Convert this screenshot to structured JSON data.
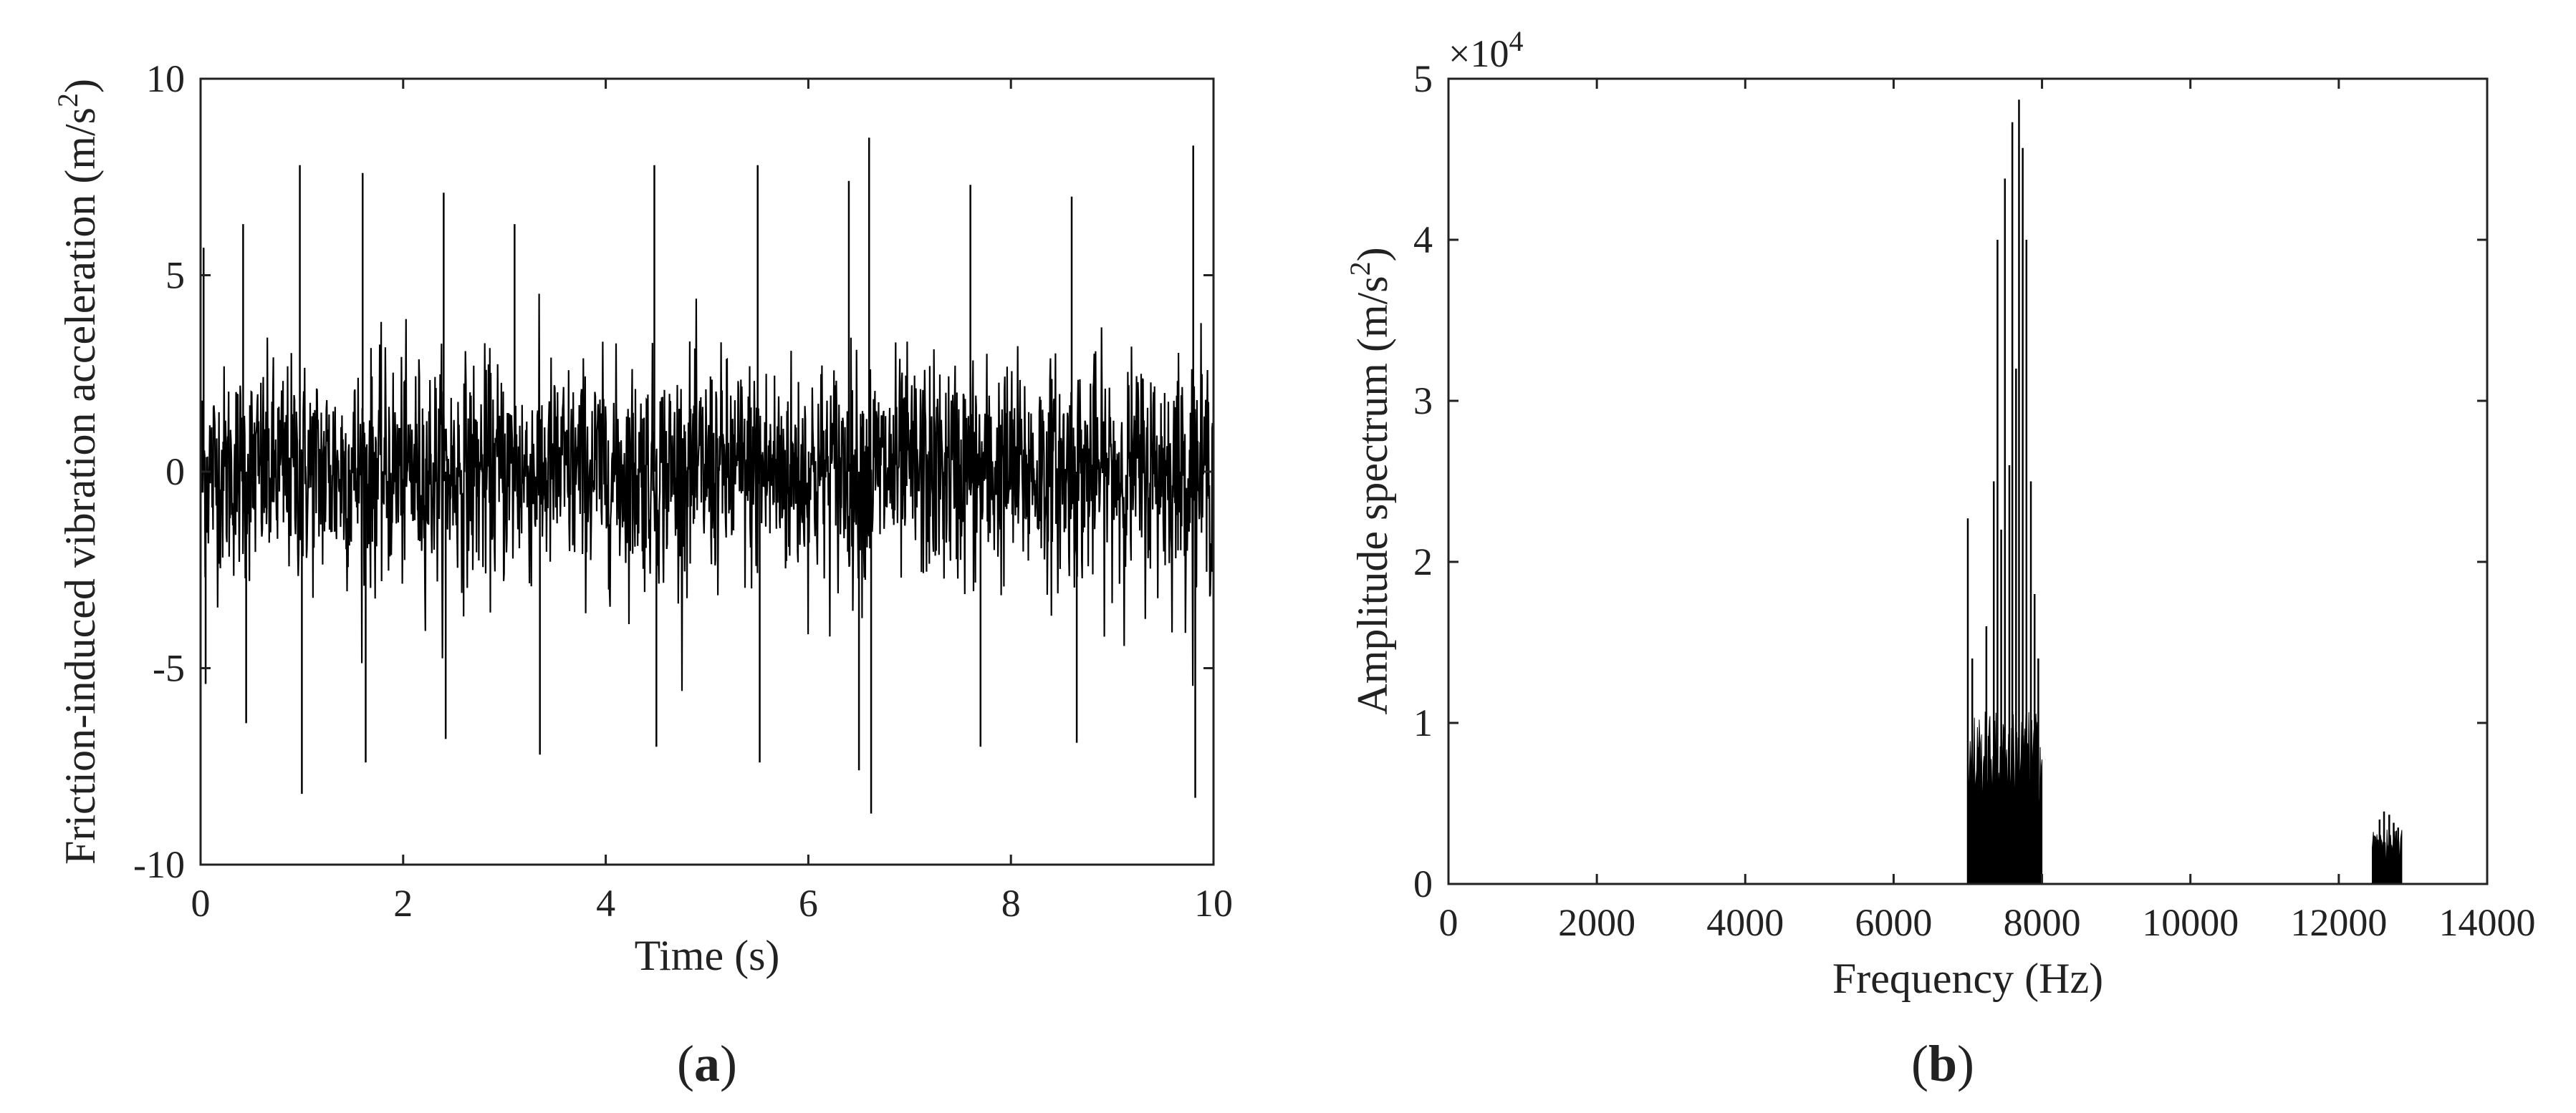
{
  "chart_data": [
    {
      "type": "line",
      "panel_label": "a",
      "xlabel": "Time (s)",
      "ylabel_main": "Friction-induced vibration acceleration (m/s",
      "ylabel_sup": "2",
      "ylabel_close": ")",
      "xlim": [
        0,
        10
      ],
      "ylim": [
        -10,
        10
      ],
      "xticks": [
        0,
        2,
        4,
        6,
        8,
        10
      ],
      "yticks": [
        -10,
        -5,
        0,
        5,
        10
      ],
      "grid": false,
      "series": [
        {
          "color": "#000000",
          "envelope": {
            "t": [
              0,
              0.5,
              1,
              2,
              3,
              4,
              5,
              6,
              7,
              8,
              9,
              9.5,
              10
            ],
            "rms": [
              1.3,
              1.35,
              1.4,
              1.4,
              1.4,
              1.35,
              1.4,
              1.45,
              1.4,
              1.4,
              1.4,
              1.45,
              1.45
            ]
          },
          "spikes": [
            {
              "t": 0.03,
              "y": 5.7
            },
            {
              "t": 0.05,
              "y": -5.4
            },
            {
              "t": 0.42,
              "y": 6.3
            },
            {
              "t": 0.45,
              "y": -6.4
            },
            {
              "t": 0.98,
              "y": 7.8
            },
            {
              "t": 1.0,
              "y": -8.2
            },
            {
              "t": 1.6,
              "y": 7.6
            },
            {
              "t": 1.63,
              "y": -7.4
            },
            {
              "t": 2.4,
              "y": 7.1
            },
            {
              "t": 2.42,
              "y": -6.8
            },
            {
              "t": 3.1,
              "y": 6.3
            },
            {
              "t": 3.35,
              "y": -7.2
            },
            {
              "t": 4.48,
              "y": 7.8
            },
            {
              "t": 4.5,
              "y": -7.0
            },
            {
              "t": 5.5,
              "y": 7.8
            },
            {
              "t": 5.52,
              "y": -7.4
            },
            {
              "t": 6.4,
              "y": 7.4
            },
            {
              "t": 6.5,
              "y": -7.6
            },
            {
              "t": 6.6,
              "y": 8.5
            },
            {
              "t": 6.62,
              "y": -8.7
            },
            {
              "t": 7.6,
              "y": 7.3
            },
            {
              "t": 7.7,
              "y": -7.0
            },
            {
              "t": 8.6,
              "y": 7.0
            },
            {
              "t": 8.65,
              "y": -6.9
            },
            {
              "t": 9.8,
              "y": 8.3
            },
            {
              "t": 9.82,
              "y": -8.3
            }
          ]
        }
      ]
    },
    {
      "type": "bar",
      "panel_label": "b",
      "xlabel": "Frequency (Hz)",
      "ylabel_main": "Amplitude spectrum (m/s",
      "ylabel_sup": "2",
      "ylabel_close": ")",
      "y_multiplier_base": "×10",
      "y_multiplier_exp": "4",
      "xlim": [
        0,
        14000
      ],
      "ylim": [
        0,
        5
      ],
      "xticks": [
        0,
        2000,
        4000,
        6000,
        8000,
        10000,
        12000,
        14000
      ],
      "yticks": [
        0,
        1,
        2,
        3,
        4,
        5
      ],
      "grid": false,
      "series": [
        {
          "color": "#000000",
          "bands": [
            {
              "f_start": 7000,
              "f_end": 8000,
              "base_level": 0.8
            },
            {
              "f_start": 12450,
              "f_end": 12850,
              "base_level": 0.25
            }
          ],
          "peaks": [
            {
              "f": 7000,
              "y": 2.27
            },
            {
              "f": 7060,
              "y": 1.4
            },
            {
              "f": 7150,
              "y": 0.85
            },
            {
              "f": 7250,
              "y": 1.6
            },
            {
              "f": 7350,
              "y": 2.5
            },
            {
              "f": 7400,
              "y": 4.0
            },
            {
              "f": 7450,
              "y": 2.2
            },
            {
              "f": 7500,
              "y": 4.38
            },
            {
              "f": 7560,
              "y": 2.6
            },
            {
              "f": 7600,
              "y": 4.73
            },
            {
              "f": 7650,
              "y": 3.2
            },
            {
              "f": 7690,
              "y": 4.87
            },
            {
              "f": 7740,
              "y": 4.57
            },
            {
              "f": 7790,
              "y": 4.0
            },
            {
              "f": 7850,
              "y": 2.5
            },
            {
              "f": 7900,
              "y": 1.8
            },
            {
              "f": 7950,
              "y": 1.4
            },
            {
              "f": 12480,
              "y": 0.3
            },
            {
              "f": 12550,
              "y": 0.4
            },
            {
              "f": 12610,
              "y": 0.45
            },
            {
              "f": 12680,
              "y": 0.43
            },
            {
              "f": 12740,
              "y": 0.38
            },
            {
              "f": 12800,
              "y": 0.35
            }
          ]
        }
      ]
    }
  ]
}
